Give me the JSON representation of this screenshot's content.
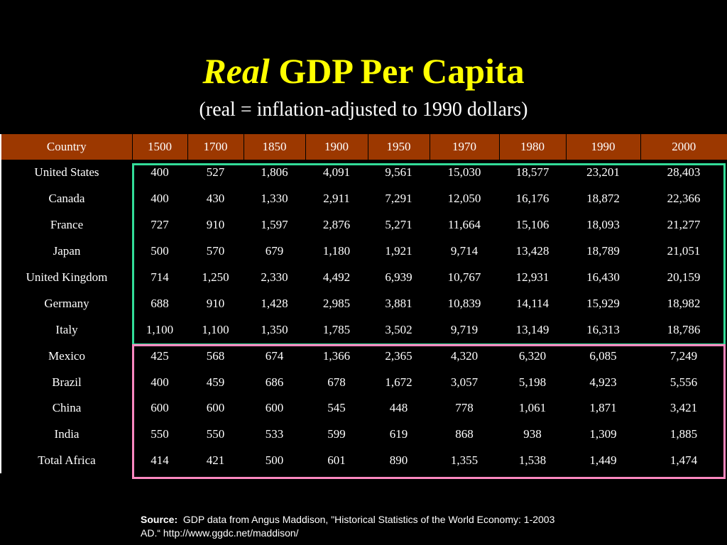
{
  "title": {
    "emphasis": "Real",
    "rest": "GDP Per Capita",
    "subtitle": "(real = inflation-adjusted to 1990 dollars)"
  },
  "table": {
    "header_color": "#9c3800",
    "headers": [
      "Country",
      "1500",
      "1700",
      "1850",
      "1900",
      "1950",
      "1970",
      "1980",
      "1990",
      "2000"
    ],
    "rows": [
      [
        "United States",
        "400",
        "527",
        "1,806",
        "4,091",
        "9,561",
        "15,030",
        "18,577",
        "23,201",
        "28,403"
      ],
      [
        "Canada",
        "400",
        "430",
        "1,330",
        "2,911",
        "7,291",
        "12,050",
        "16,176",
        "18,872",
        "22,366"
      ],
      [
        "France",
        "727",
        "910",
        "1,597",
        "2,876",
        "5,271",
        "11,664",
        "15,106",
        "18,093",
        "21,277"
      ],
      [
        "Japan",
        "500",
        "570",
        "679",
        "1,180",
        "1,921",
        "9,714",
        "13,428",
        "18,789",
        "21,051"
      ],
      [
        "United Kingdom",
        "714",
        "1,250",
        "2,330",
        "4,492",
        "6,939",
        "10,767",
        "12,931",
        "16,430",
        "20,159"
      ],
      [
        "Germany",
        "688",
        "910",
        "1,428",
        "2,985",
        "3,881",
        "10,839",
        "14,114",
        "15,929",
        "18,982"
      ],
      [
        "Italy",
        "1,100",
        "1,100",
        "1,350",
        "1,785",
        "3,502",
        "9,719",
        "13,149",
        "16,313",
        "18,786"
      ],
      [
        "Mexico",
        "425",
        "568",
        "674",
        "1,366",
        "2,365",
        "4,320",
        "6,320",
        "6,085",
        "7,249"
      ],
      [
        "Brazil",
        "400",
        "459",
        "686",
        "678",
        "1,672",
        "3,057",
        "5,198",
        "4,923",
        "5,556"
      ],
      [
        "China",
        "600",
        "600",
        "600",
        "545",
        "448",
        "778",
        "1,061",
        "1,871",
        "3,421"
      ],
      [
        "India",
        "550",
        "550",
        "533",
        "599",
        "619",
        "868",
        "938",
        "1,309",
        "1,885"
      ],
      [
        "Total Africa",
        "414",
        "421",
        "500",
        "601",
        "890",
        "1,355",
        "1,538",
        "1,449",
        "1,474"
      ]
    ]
  },
  "highlight_colors": {
    "upper_group": "#33dd99",
    "lower_group": "#ff88c0"
  },
  "source": {
    "label": "Source:",
    "line1": "GDP data from Angus Maddison, \"Historical Statistics of the World Economy: 1-2003",
    "line2": "AD.“     http://www.ggdc.net/maddison/"
  }
}
